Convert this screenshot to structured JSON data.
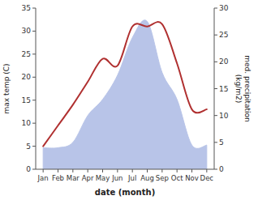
{
  "chart_data": {
    "type": "line",
    "categories": [
      "Jan",
      "Feb",
      "Mar",
      "Apr",
      "May",
      "Jun",
      "Jul",
      "Aug",
      "Sep",
      "Oct",
      "Nov",
      "Dec"
    ],
    "xlabel": "date (month)",
    "ylabel": "max temp (C)",
    "y2label": "med. precipitation\n(kg/m2)",
    "series": [
      {
        "type": "area",
        "axis": "y2",
        "color": "#b8c4e8",
        "values": [
          4.0,
          4.0,
          5.0,
          10.0,
          13.0,
          17.5,
          24.5,
          27.5,
          18.0,
          13.0,
          4.5,
          4.5
        ]
      },
      {
        "type": "line",
        "color": "#b03030",
        "values": [
          5.0,
          9.5,
          14.0,
          19.0,
          24.0,
          22.5,
          31.0,
          31.0,
          31.5,
          23.0,
          13.0,
          13.0
        ]
      }
    ],
    "ylim": [
      0,
      35
    ],
    "yticks": [
      0,
      5,
      10,
      15,
      20,
      25,
      30,
      35
    ],
    "y2lim": [
      0,
      30
    ],
    "y2ticks": [
      0,
      5,
      10,
      15,
      20,
      25,
      30
    ]
  }
}
